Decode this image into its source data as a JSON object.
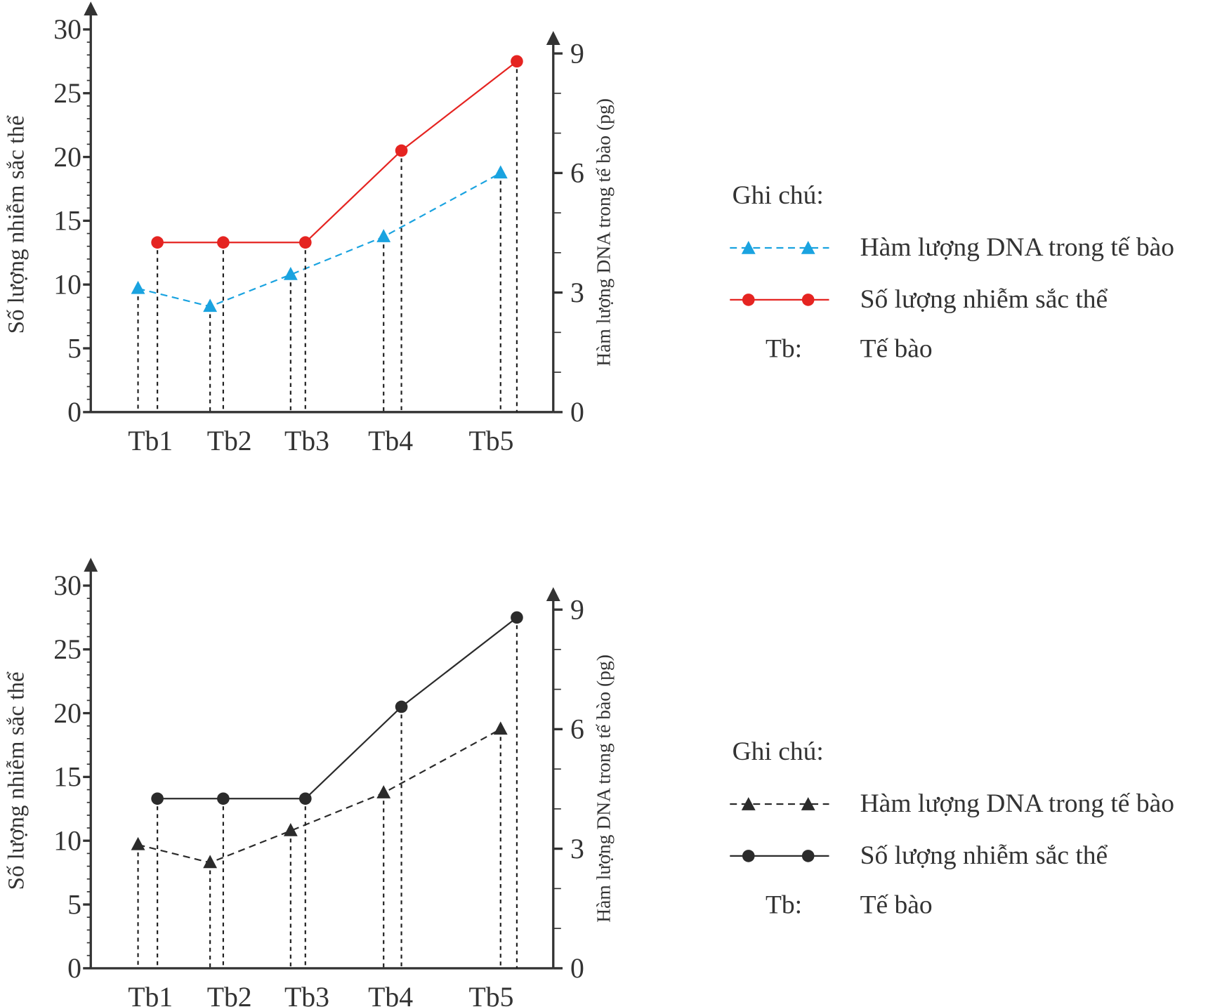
{
  "chart_data": [
    {
      "type": "line",
      "categories": [
        "Tb1",
        "Tb2",
        "Tb3",
        "Tb4",
        "Tb5"
      ],
      "ylabel": "Số lượng nhiễm sắc thể",
      "y2label": "Hàm lượng DNA trong tế bào (pg)",
      "ylim": [
        0,
        30
      ],
      "yticks": [
        0,
        5,
        10,
        15,
        20,
        25,
        30
      ],
      "y2lim": [
        0,
        9
      ],
      "y2ticks": [
        0,
        3,
        6,
        9
      ],
      "grid": false,
      "series": [
        {
          "name": "Hàm lượng DNA trong tế bào",
          "axis": "right",
          "style": "dashed",
          "marker": "triangle",
          "color": "#1aa3e0",
          "values": [
            3.1,
            2.65,
            3.45,
            4.4,
            6.0
          ]
        },
        {
          "name": "Số lượng nhiễm sắc thể",
          "axis": "left",
          "style": "solid",
          "marker": "circle",
          "color": "#e52421",
          "values": [
            13.3,
            13.3,
            13.3,
            20.5,
            27.5
          ]
        }
      ],
      "legend": {
        "title": "Ghi chú:",
        "placement": "right",
        "abbr_key": "Tb:",
        "abbr_value": "Tế bào"
      }
    },
    {
      "type": "line",
      "categories": [
        "Tb1",
        "Tb2",
        "Tb3",
        "Tb4",
        "Tb5"
      ],
      "ylabel": "Số lượng nhiễm sắc thể",
      "y2label": "Hàm lượng DNA trong tế bào (pg)",
      "ylim": [
        0,
        30
      ],
      "yticks": [
        0,
        5,
        10,
        15,
        20,
        25,
        30
      ],
      "y2lim": [
        0,
        9
      ],
      "y2ticks": [
        0,
        3,
        6,
        9
      ],
      "grid": false,
      "series": [
        {
          "name": "Hàm lượng DNA trong tế bào",
          "axis": "right",
          "style": "dashed",
          "marker": "triangle",
          "color": "#2b2b2b",
          "values": [
            3.1,
            2.65,
            3.45,
            4.4,
            6.0
          ]
        },
        {
          "name": "Số lượng nhiễm sắc thể",
          "axis": "left",
          "style": "solid",
          "marker": "circle",
          "color": "#2b2b2b",
          "values": [
            13.3,
            13.3,
            13.3,
            20.5,
            27.5
          ]
        }
      ],
      "legend": {
        "title": "Ghi chú:",
        "placement": "right",
        "abbr_key": "Tb:",
        "abbr_value": "Tế bào"
      }
    }
  ]
}
